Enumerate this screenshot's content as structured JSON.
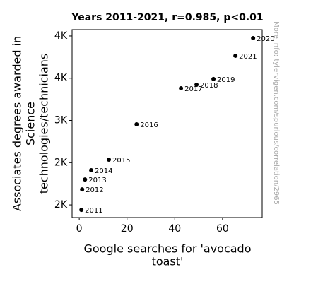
{
  "chart_data": {
    "type": "scatter",
    "title": "Years 2011-2021, r=0.985, p<0.01",
    "xlabel": [
      "Google searches for 'avocado",
      "toast'"
    ],
    "ylabel": [
      "Associates degrees awarded in",
      "Science",
      "technologies/technicians"
    ],
    "side_note": "More info: tylervigen.com/spurious/correlation/2965",
    "labels": [
      "2011",
      "2012",
      "2013",
      "2014",
      "2015",
      "2016",
      "2017",
      "2018",
      "2019",
      "2020",
      "2021"
    ],
    "x": [
      0.9,
      1.2,
      2.4,
      5.0,
      12.4,
      24.0,
      42.6,
      49.1,
      56.2,
      72.8,
      65.4
    ],
    "values": [
      1941,
      2184,
      2301,
      2410,
      2536,
      2954,
      3381,
      3423,
      3490,
      3975,
      3766
    ],
    "color": "#000000",
    "xlim": [
      -3,
      76.6
    ],
    "xticks": [
      0,
      20,
      40,
      60
    ],
    "ylim": [
      1850,
      4075
    ],
    "yticks": [
      {
        "value": 2000,
        "label": "2K"
      },
      {
        "value": 2500,
        "label": "2K"
      },
      {
        "value": 3000,
        "label": "3K"
      },
      {
        "value": 3500,
        "label": "4K"
      },
      {
        "value": 4000,
        "label": "4K"
      }
    ],
    "grid": false
  }
}
